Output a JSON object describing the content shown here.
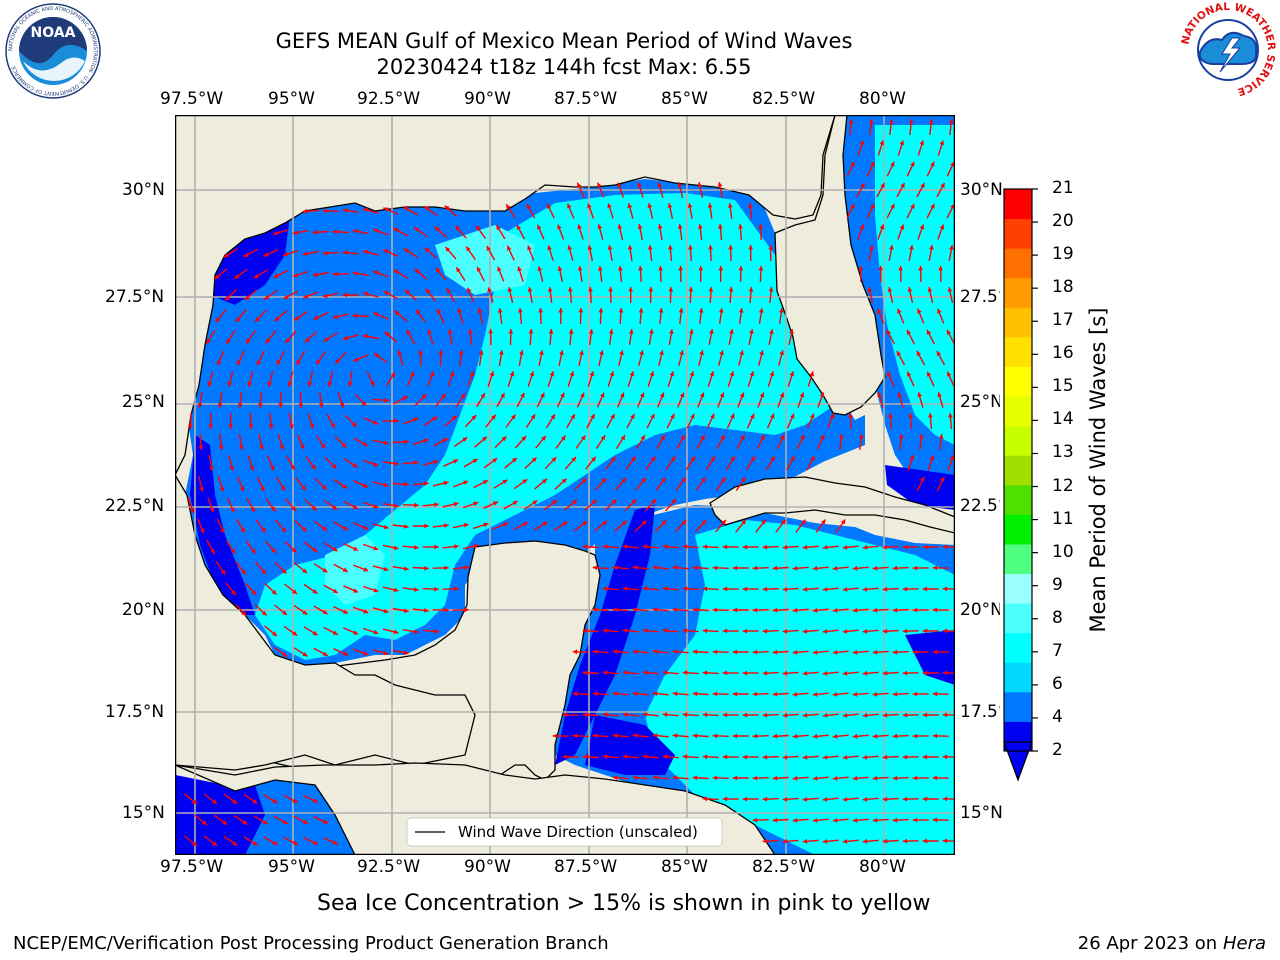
{
  "header": {
    "title_line1": "GEFS MEAN Gulf of Mexico Mean Period of Wind Waves",
    "title_line2": "20230424 t18z 144h fcst   Max: 6.55"
  },
  "map": {
    "lon_ticks": [
      "97.5°W",
      "95°W",
      "92.5°W",
      "90°W",
      "87.5°W",
      "85°W",
      "82.5°W",
      "80°W"
    ],
    "lat_ticks_left": [
      "30°N",
      "27.5°N",
      "25°N",
      "22.5°N",
      "20°N",
      "17.5°N",
      "15°N"
    ],
    "lat_ticks_right": [
      "30°N",
      "27.5°N",
      "25°N",
      "22.5°N",
      "20°N",
      "17.5°N",
      "15°N"
    ],
    "legend_label": "Wind Wave Direction (unscaled)",
    "colors": {
      "land": "#eeecdc",
      "grid": "#b0b0b0",
      "arrow": "#ff0000",
      "coast": "#000000"
    }
  },
  "colorbar": {
    "label": "Mean Period of Wind Waves [s]",
    "ticks": [
      "21",
      "20",
      "19",
      "18",
      "17",
      "16",
      "15",
      "14",
      "13",
      "12",
      "11",
      "10",
      "9",
      "8",
      "7",
      "6",
      "4",
      "2"
    ],
    "colors": [
      "#0000f0",
      "#0078ff",
      "#00d8ff",
      "#00ffff",
      "#4cffff",
      "#99ffff",
      "#4fff7f",
      "#00f000",
      "#50e000",
      "#a0e000",
      "#c8ff00",
      "#e8ff00",
      "#ffff00",
      "#ffe000",
      "#ffc000",
      "#ff9a00",
      "#ff7000",
      "#ff4000",
      "#ff0000"
    ]
  },
  "logos": {
    "noaa_text": "NOAA",
    "noaa_ring": "NATIONAL OCEANIC AND ATMOSPHERIC ADMINISTRATION · U.S. DEPARTMENT OF COMMERCE",
    "nws_ring": "NATIONAL WEATHER SERVICE"
  },
  "footer": {
    "sea_ice_note": "Sea Ice Concentration > 15% is shown in pink to yellow",
    "left": "NCEP/EMC/Verification Post Processing Product Generation Branch",
    "right_date": "26 Apr 2023 on ",
    "right_machine": "Hera"
  }
}
